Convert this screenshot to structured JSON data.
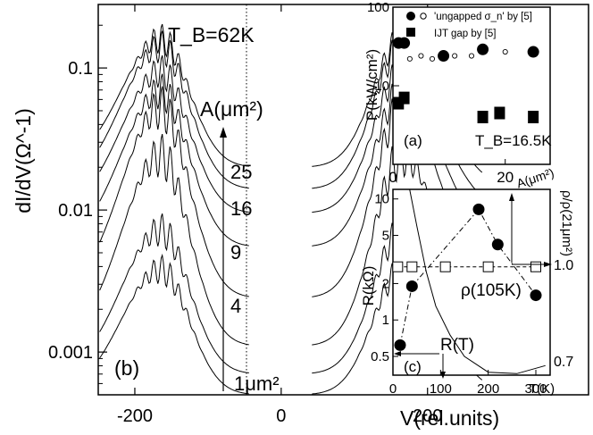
{
  "chart_data": [
    {
      "type": "line",
      "panel": "(b)",
      "title": "T_B=62K",
      "xlabel": "V(rel.units)",
      "ylabel": "dI/dV(Ω^-1)",
      "xlim": [
        -250,
        420
      ],
      "ylim": [
        0.0005,
        0.28
      ],
      "yscale": "log",
      "x_ticks": [
        -200,
        0,
        200
      ],
      "y_ticks": [
        0.001,
        0.01,
        0.1
      ],
      "x_tick_labels": [
        "-200",
        "0",
        "200"
      ],
      "y_tick_labels": [
        "0.001",
        "0.01",
        "0.1"
      ],
      "arrow_label": "A(μm²)",
      "legend": "none",
      "grid": false,
      "series": [
        {
          "label": "1μm²",
          "area_um2": 1,
          "baseline": 0.0005,
          "peak": 0.0038
        },
        {
          "label": "4",
          "area_um2": 4,
          "baseline": 0.0007,
          "peak": 0.0072
        },
        {
          "label": "9",
          "area_um2": 9,
          "baseline": 0.0011,
          "peak": 0.024
        },
        {
          "label": "16",
          "area_um2": 16,
          "baseline": 0.0024,
          "peak": 0.052
        },
        {
          "label": "25",
          "area_um2": 25,
          "baseline": 0.0055,
          "peak": 0.068
        },
        {
          "label": "",
          "area_um2": null,
          "baseline": 0.0095,
          "peak": 0.094
        },
        {
          "label": "",
          "area_um2": null,
          "baseline": 0.014,
          "peak": 0.14
        },
        {
          "label": "",
          "area_um2": null,
          "baseline": 0.02,
          "peak": 0.16
        }
      ]
    },
    {
      "type": "scatter",
      "panel": "(a)",
      "annotation": "T_B=16.5K",
      "xlabel": "A(μm²)",
      "ylabel": "P(kW/cm²)",
      "xlim": [
        0,
        28
      ],
      "ylim": [
        1,
        100
      ],
      "yscale": "log",
      "x_ticks": [
        0,
        20
      ],
      "y_ticks": [
        1,
        10,
        100
      ],
      "x_tick_labels": [
        "0",
        "20"
      ],
      "y_tick_labels": [
        "",
        "10",
        "100"
      ],
      "series": [
        {
          "name": "'ungapped σ_n' by [5]",
          "marker": "filled-circle",
          "points": [
            [
              1,
              35
            ],
            [
              2,
              35
            ],
            [
              9,
              24
            ],
            [
              16,
              29
            ],
            [
              25,
              27
            ]
          ]
        },
        {
          "name": "'ungapped σ_n' by [5] (open)",
          "marker": "open-circle",
          "points": [
            [
              3,
              22
            ],
            [
              5,
              24
            ],
            [
              7,
              22
            ],
            [
              11,
              24
            ],
            [
              14,
              24
            ],
            [
              20,
              27
            ]
          ]
        },
        {
          "name": "IJT gap by [5]",
          "marker": "filled-square",
          "points": [
            [
              1,
              6
            ],
            [
              2,
              7
            ],
            [
              16,
              4
            ],
            [
              19,
              4.5
            ],
            [
              25,
              4
            ]
          ]
        }
      ]
    },
    {
      "type": "line",
      "panel": "(c)",
      "xlabel": "T(K)",
      "ylabel": "R(kΩ)",
      "y2label": "ρ/ρ(21μm²)",
      "xlim": [
        0,
        330
      ],
      "ylim": [
        0.35,
        12
      ],
      "yscale": "log",
      "y2lim": [
        0.7,
        1.0
      ],
      "x_ticks": [
        0,
        100,
        200,
        300
      ],
      "x_tick_labels": [
        "0",
        "100",
        "200",
        "300"
      ],
      "y_ticks": [
        0.5,
        1,
        2,
        5,
        10
      ],
      "y_tick_labels": [
        "0.5",
        "1",
        "2",
        "5",
        "10"
      ],
      "y2_tick_labels": [
        "1.0",
        "0.7"
      ],
      "annotations": [
        "R(T)",
        "ρ(105K)"
      ],
      "series": [
        {
          "name": "R(T)",
          "style": "solid",
          "points": [
            [
              35,
              12
            ],
            [
              50,
              6
            ],
            [
              70,
              2.5
            ],
            [
              90,
              1.3
            ],
            [
              120,
              0.75
            ],
            [
              150,
              0.5
            ],
            [
              200,
              0.37
            ],
            [
              260,
              0.36
            ],
            [
              320,
              0.42
            ]
          ]
        },
        {
          "name": "ρ(105K) filled",
          "style": "dash-dot",
          "marker": "filled-circle",
          "points": [
            [
              15,
              0.62
            ],
            [
              40,
              1.9
            ],
            [
              180,
              8.2
            ],
            [
              220,
              4.2
            ],
            [
              300,
              1.6
            ]
          ]
        },
        {
          "name": "ρ(105K) open",
          "style": "dashed",
          "marker": "open-square",
          "points": [
            [
              10,
              2.75
            ],
            [
              40,
              2.75
            ],
            [
              110,
              2.75
            ],
            [
              200,
              2.75
            ],
            [
              300,
              2.75
            ]
          ]
        }
      ]
    }
  ]
}
